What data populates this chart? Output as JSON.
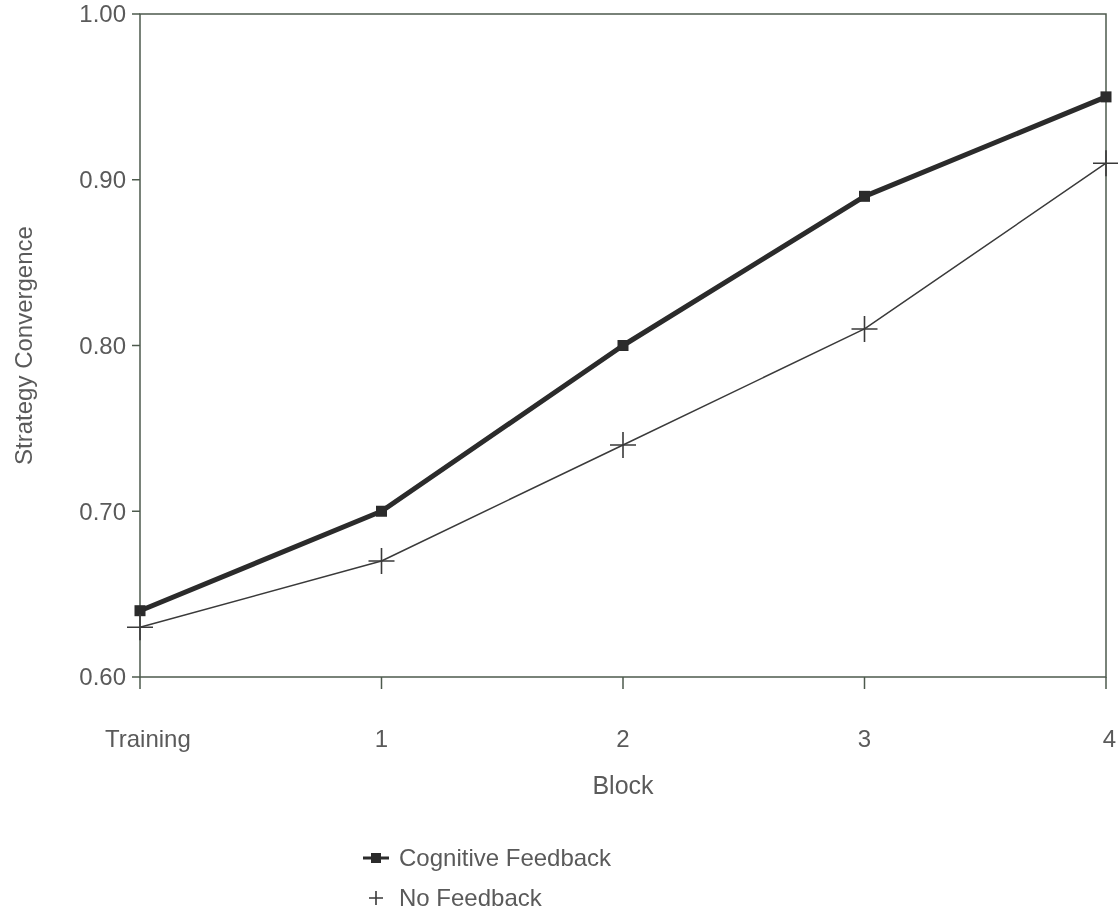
{
  "chart_data": {
    "type": "line",
    "xlabel": "Block",
    "ylabel": "Strategy Convergence",
    "categories": [
      "Training",
      "1",
      "2",
      "3",
      "4"
    ],
    "series": [
      {
        "name": "Cognitive Feedback",
        "color": "#2b2b2b",
        "marker": "square",
        "values": [
          0.64,
          0.7,
          0.8,
          0.89,
          0.95
        ]
      },
      {
        "name": "No Feedback",
        "color": "#3a3a3a",
        "marker": "cross",
        "values": [
          0.63,
          0.67,
          0.74,
          0.81,
          0.91
        ]
      }
    ],
    "ylim": [
      0.6,
      1.0
    ],
    "yticks": [
      {
        "value": 0.6,
        "label": "0.60"
      },
      {
        "value": 0.7,
        "label": "0.70"
      },
      {
        "value": 0.8,
        "label": "0.80"
      },
      {
        "value": 0.9,
        "label": "0.90"
      },
      {
        "value": 1.0,
        "label": "1.00"
      }
    ],
    "grid": false,
    "legend": "bottom",
    "line_style": "solid"
  }
}
